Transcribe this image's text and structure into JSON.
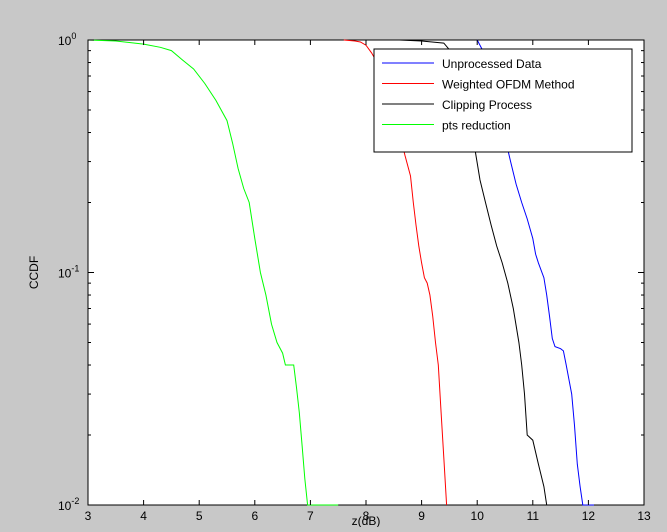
{
  "chart_data": {
    "type": "line",
    "title": "",
    "xlabel": "z(dB)",
    "ylabel": "CCDF",
    "xlim": [
      3,
      13
    ],
    "ylim": [
      0.01,
      1
    ],
    "yscale": "log",
    "grid": false,
    "legend_position": "top-right",
    "xticks": [
      3,
      4,
      5,
      6,
      7,
      8,
      9,
      10,
      11,
      12,
      13
    ],
    "yticks": [
      {
        "value": 0.01,
        "base": "10",
        "exp": "-2"
      },
      {
        "value": 0.1,
        "base": "10",
        "exp": "-1"
      },
      {
        "value": 1,
        "base": "10",
        "exp": "0"
      }
    ],
    "series": [
      {
        "name": "Unprocessed Data",
        "color": "#0000ff",
        "points": [
          [
            10.0,
            1.0
          ],
          [
            10.1,
            0.9
          ],
          [
            10.2,
            0.7
          ],
          [
            10.3,
            0.55
          ],
          [
            10.4,
            0.45
          ],
          [
            10.5,
            0.38
          ],
          [
            10.6,
            0.3
          ],
          [
            10.7,
            0.24
          ],
          [
            10.8,
            0.2
          ],
          [
            10.9,
            0.17
          ],
          [
            11.0,
            0.14
          ],
          [
            11.05,
            0.12
          ],
          [
            11.1,
            0.11
          ],
          [
            11.2,
            0.095
          ],
          [
            11.25,
            0.08
          ],
          [
            11.3,
            0.065
          ],
          [
            11.35,
            0.052
          ],
          [
            11.4,
            0.048
          ],
          [
            11.5,
            0.047
          ],
          [
            11.55,
            0.046
          ],
          [
            11.6,
            0.04
          ],
          [
            11.7,
            0.03
          ],
          [
            11.75,
            0.022
          ],
          [
            11.8,
            0.015
          ],
          [
            11.85,
            0.012
          ],
          [
            11.9,
            0.01
          ],
          [
            12.1,
            0.01
          ]
        ]
      },
      {
        "name": "Weighted OFDM Method",
        "color": "#ff0000",
        "points": [
          [
            7.6,
            1.0
          ],
          [
            7.8,
            0.99
          ],
          [
            7.9,
            0.98
          ],
          [
            8.0,
            0.95
          ],
          [
            8.1,
            0.88
          ],
          [
            8.2,
            0.8
          ],
          [
            8.3,
            0.7
          ],
          [
            8.4,
            0.6
          ],
          [
            8.5,
            0.5
          ],
          [
            8.6,
            0.4
          ],
          [
            8.7,
            0.32
          ],
          [
            8.8,
            0.26
          ],
          [
            8.85,
            0.2
          ],
          [
            8.9,
            0.16
          ],
          [
            8.95,
            0.13
          ],
          [
            9.0,
            0.11
          ],
          [
            9.05,
            0.095
          ],
          [
            9.1,
            0.09
          ],
          [
            9.15,
            0.08
          ],
          [
            9.2,
            0.065
          ],
          [
            9.25,
            0.05
          ],
          [
            9.3,
            0.04
          ],
          [
            9.35,
            0.025
          ],
          [
            9.4,
            0.016
          ],
          [
            9.45,
            0.01
          ]
        ]
      },
      {
        "name": "Clipping Process",
        "color": "#000000",
        "points": [
          [
            8.6,
            1.0
          ],
          [
            9.0,
            0.99
          ],
          [
            9.4,
            0.97
          ],
          [
            9.6,
            0.85
          ],
          [
            9.75,
            0.6
          ],
          [
            9.85,
            0.45
          ],
          [
            9.95,
            0.35
          ],
          [
            10.05,
            0.25
          ],
          [
            10.15,
            0.2
          ],
          [
            10.25,
            0.16
          ],
          [
            10.35,
            0.13
          ],
          [
            10.45,
            0.11
          ],
          [
            10.55,
            0.09
          ],
          [
            10.65,
            0.07
          ],
          [
            10.75,
            0.05
          ],
          [
            10.8,
            0.04
          ],
          [
            10.85,
            0.03
          ],
          [
            10.9,
            0.02
          ],
          [
            11.0,
            0.019
          ],
          [
            11.1,
            0.015
          ],
          [
            11.2,
            0.012
          ],
          [
            11.25,
            0.01
          ],
          [
            11.3,
            0.01
          ]
        ]
      },
      {
        "name": "pts reduction",
        "color": "#00ff00",
        "points": [
          [
            3.0,
            1.0
          ],
          [
            3.5,
            0.99
          ],
          [
            4.0,
            0.96
          ],
          [
            4.3,
            0.93
          ],
          [
            4.5,
            0.9
          ],
          [
            4.7,
            0.82
          ],
          [
            4.9,
            0.75
          ],
          [
            5.1,
            0.65
          ],
          [
            5.3,
            0.55
          ],
          [
            5.5,
            0.45
          ],
          [
            5.6,
            0.36
          ],
          [
            5.7,
            0.28
          ],
          [
            5.8,
            0.23
          ],
          [
            5.9,
            0.2
          ],
          [
            6.0,
            0.14
          ],
          [
            6.1,
            0.1
          ],
          [
            6.2,
            0.08
          ],
          [
            6.3,
            0.06
          ],
          [
            6.4,
            0.05
          ],
          [
            6.5,
            0.045
          ],
          [
            6.55,
            0.04
          ],
          [
            6.6,
            0.04
          ],
          [
            6.7,
            0.04
          ],
          [
            6.75,
            0.032
          ],
          [
            6.8,
            0.025
          ],
          [
            6.85,
            0.018
          ],
          [
            6.9,
            0.013
          ],
          [
            6.95,
            0.01
          ],
          [
            7.5,
            0.01
          ]
        ]
      }
    ]
  }
}
